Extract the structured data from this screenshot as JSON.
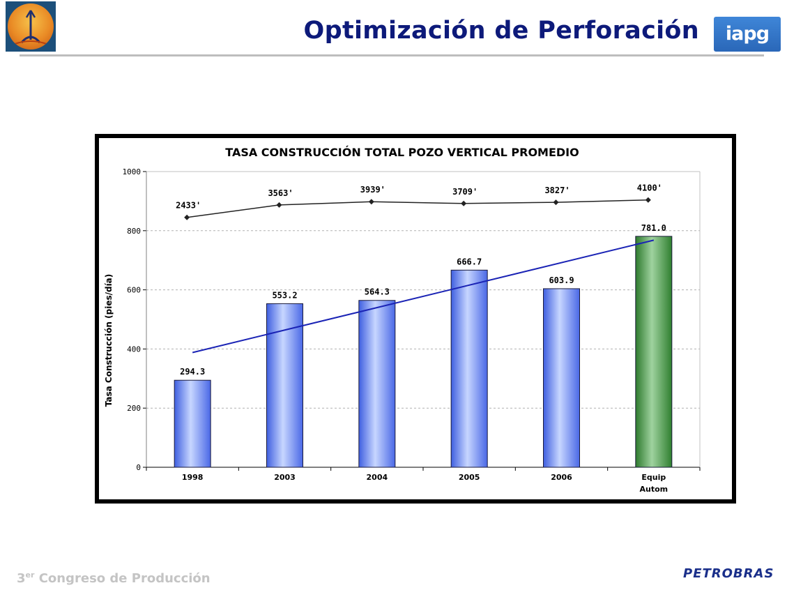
{
  "header": {
    "title": "Optimización de Perforación",
    "logo_right_text": "iapg"
  },
  "footer": {
    "congress_prefix": "3",
    "congress_sup": "er",
    "congress_text": "Congreso de Producción",
    "brand": "PETROBRAS"
  },
  "colors": {
    "title": "#0d1a7a",
    "bar_blue": "#7f9cf4",
    "bar_green": "#4e9a4e",
    "trend_line": "#1a23b5",
    "depth_line": "#222222"
  },
  "chart_data": {
    "type": "bar",
    "title": "TASA CONSTRUCCIÓN TOTAL POZO VERTICAL PROMEDIO",
    "xlabel": "",
    "ylabel": "Tasa Construcción (pies/día)",
    "ylim": [
      0,
      1000
    ],
    "yticks": [
      0,
      200,
      400,
      600,
      800,
      1000
    ],
    "grid": true,
    "categories": [
      [
        "1998"
      ],
      [
        "2003"
      ],
      [
        "2004"
      ],
      [
        "2005"
      ],
      [
        "2006"
      ],
      [
        "Equip",
        "Autom"
      ]
    ],
    "values": [
      294.3,
      553.2,
      564.3,
      666.7,
      603.9,
      781.0
    ],
    "value_labels": [
      "294.3",
      "553.2",
      "564.3",
      "666.7",
      "603.9",
      "781.0"
    ],
    "bar_colors": [
      "blue",
      "blue",
      "blue",
      "blue",
      "blue",
      "green"
    ],
    "depth_series": {
      "plotted_values": [
        845,
        887,
        898,
        892,
        896,
        904
      ],
      "labels": [
        "2433'",
        "3563'",
        "3939'",
        "3709'",
        "3827'",
        "4100'"
      ]
    },
    "trend_line": {
      "start": 388,
      "end": 768
    }
  }
}
